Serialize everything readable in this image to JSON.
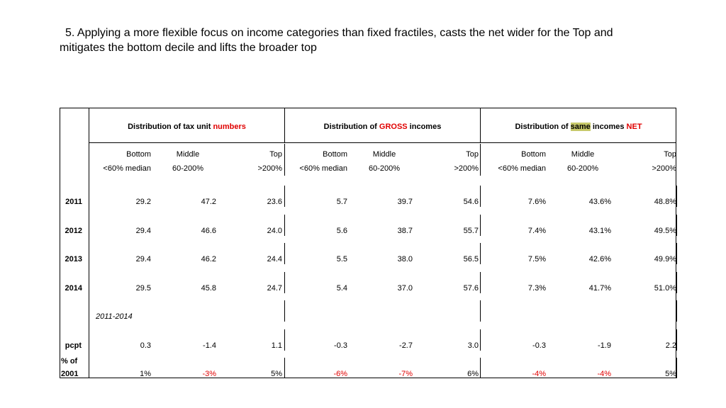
{
  "title": {
    "line1": "5. Applying a more flexible focus on income categories than fixed fractiles, casts the net wider for the Top and",
    "line2": "mitigates the bottom decile and lifts the broader top"
  },
  "headers": {
    "numbers": {
      "pre": "Distribution of tax unit ",
      "em": "numbers",
      "post": ""
    },
    "gross": {
      "pre": "Distribution of ",
      "em": "GROSS",
      "post": " incomes"
    },
    "net": {
      "pre": "Distribution of ",
      "hl": "same",
      "mid": " incomes ",
      "em": "NET"
    }
  },
  "subheaders": {
    "bottom": "Bottom",
    "middle": "Middle",
    "top": "Top",
    "bottom_range": "<60% median",
    "middle_range": "60-200%",
    "top_range": ">200%"
  },
  "rows": [
    {
      "label": "2011",
      "values": [
        "29.2",
        "47.2",
        "23.6",
        "5.7",
        "39.7",
        "54.6",
        "7.6%",
        "43.6%",
        "48.8%"
      ]
    },
    {
      "label": "2012",
      "values": [
        "29.4",
        "46.6",
        "24.0",
        "5.6",
        "38.7",
        "55.7",
        "7.4%",
        "43.1%",
        "49.5%"
      ]
    },
    {
      "label": "2013",
      "values": [
        "29.4",
        "46.2",
        "24.4",
        "5.5",
        "38.0",
        "56.5",
        "7.5%",
        "42.6%",
        "49.9%"
      ]
    },
    {
      "label": "2014",
      "values": [
        "29.5",
        "45.8",
        "24.7",
        "5.4",
        "37.0",
        "57.6",
        "7.3%",
        "41.7%",
        "51.0%"
      ]
    }
  ],
  "period_label": "2011-2014",
  "pcpt": {
    "label": "pcpt",
    "values": [
      "0.3",
      "-1.4",
      "1.1",
      "-0.3",
      "-2.7",
      "3.0",
      "-0.3",
      "-1.9",
      "2.2"
    ]
  },
  "pct2001": {
    "label_line1": "% of",
    "label_line2": "2001",
    "values": [
      "1%",
      "-3%",
      "5%",
      "-6%",
      "-7%",
      "6%",
      "-4%",
      "-4%",
      "5%"
    ],
    "red": [
      false,
      true,
      false,
      true,
      true,
      false,
      true,
      true,
      false
    ]
  },
  "colors": {
    "accent_red": "#e00000",
    "highlight": "#c7c96a"
  }
}
